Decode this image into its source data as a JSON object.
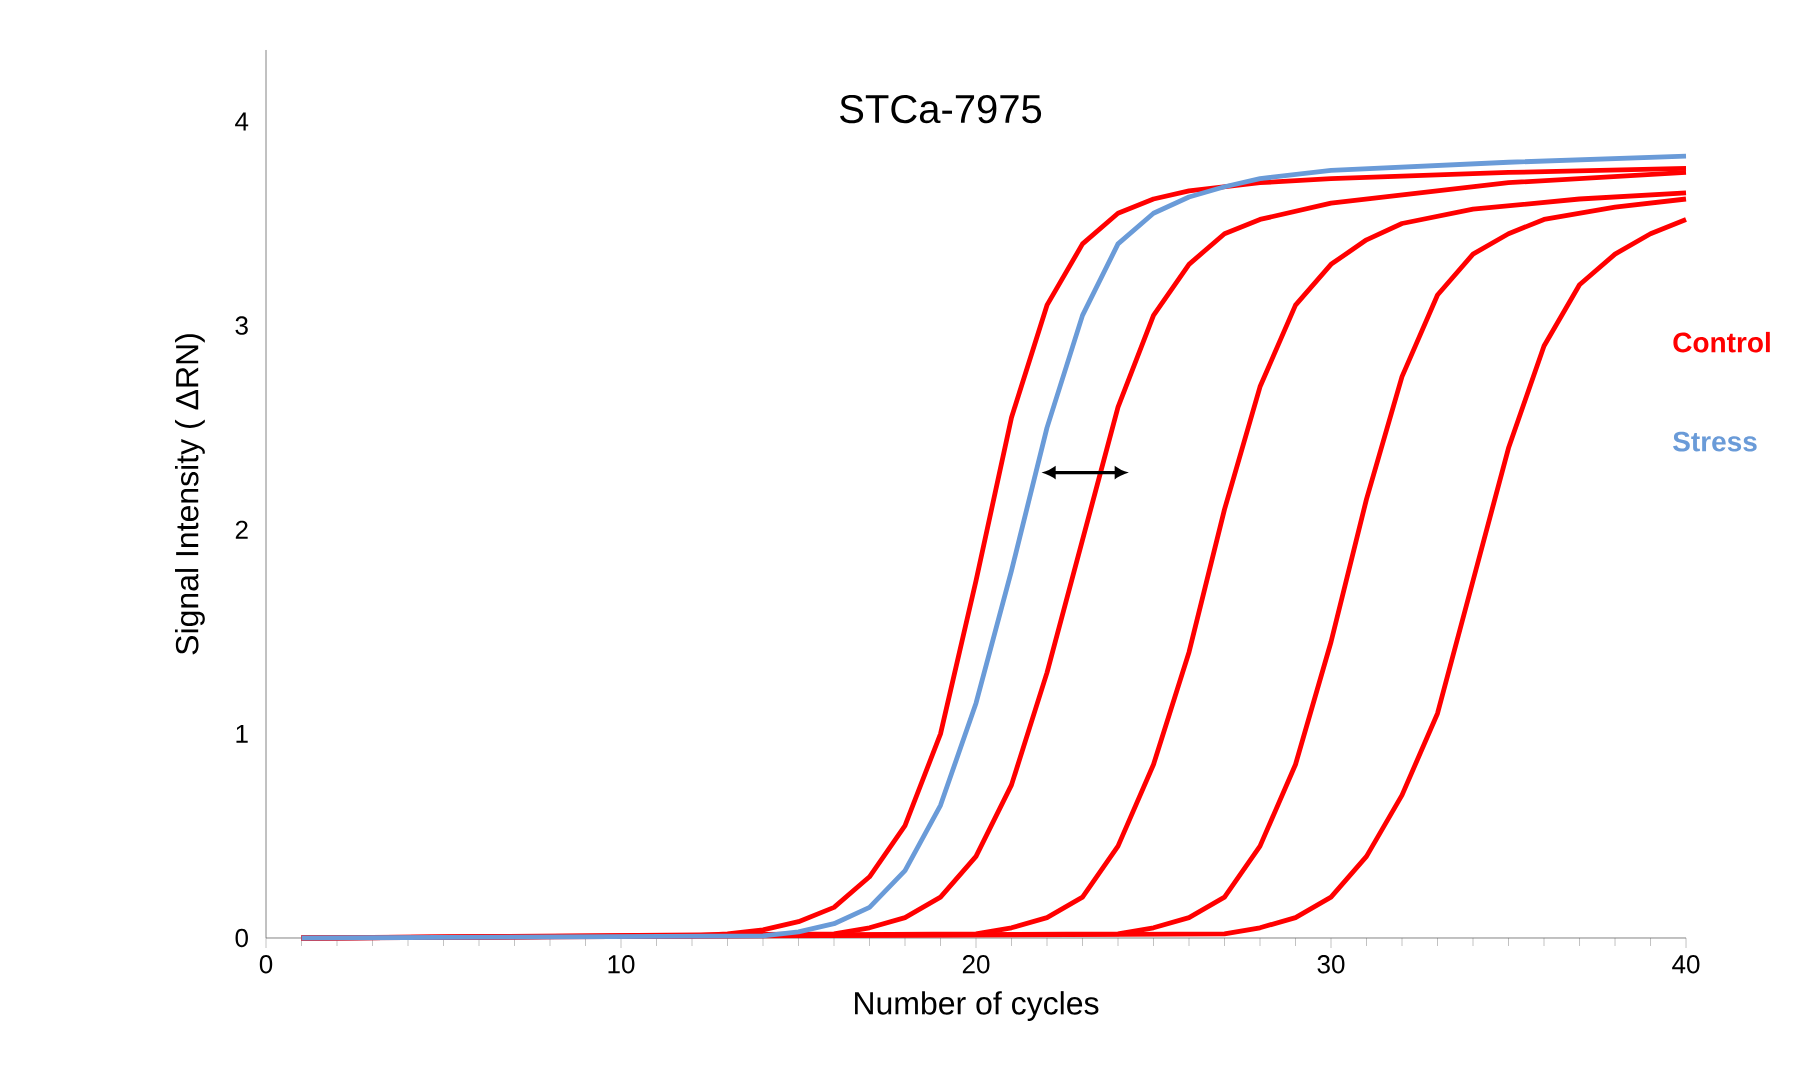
{
  "chart_data": {
    "type": "line",
    "title": "STCa-7975",
    "xlabel": "Number of cycles",
    "ylabel": "Signal Intensity ( ΔRN)",
    "xlim": [
      0,
      40
    ],
    "ylim": [
      0,
      4.35
    ],
    "xticks": [
      0,
      10,
      20,
      30,
      40
    ],
    "yticks": [
      0,
      1,
      2,
      3,
      4
    ],
    "grid": false,
    "legend": "right",
    "marker": "none",
    "line_style": "solid",
    "series": [
      {
        "name": "Control",
        "color": "#ff0000",
        "x": [
          1,
          12,
          13,
          14,
          15,
          16,
          17,
          18,
          19,
          20,
          21,
          22,
          23,
          24,
          25,
          26,
          27,
          28,
          30,
          35,
          40
        ],
        "values": [
          0,
          0.01,
          0.02,
          0.04,
          0.08,
          0.15,
          0.3,
          0.55,
          1.0,
          1.75,
          2.55,
          3.1,
          3.4,
          3.55,
          3.62,
          3.66,
          3.68,
          3.7,
          3.72,
          3.75,
          3.77
        ]
      },
      {
        "color": "#ff0000",
        "x": [
          1,
          16,
          17,
          18,
          19,
          20,
          21,
          22,
          23,
          24,
          25,
          26,
          27,
          28,
          30,
          35,
          40
        ],
        "values": [
          0,
          0.02,
          0.05,
          0.1,
          0.2,
          0.4,
          0.75,
          1.3,
          1.95,
          2.6,
          3.05,
          3.3,
          3.45,
          3.52,
          3.6,
          3.7,
          3.75
        ]
      },
      {
        "color": "#ff0000",
        "x": [
          1,
          20,
          21,
          22,
          23,
          24,
          25,
          26,
          27,
          28,
          29,
          30,
          31,
          32,
          34,
          37,
          40
        ],
        "values": [
          0,
          0.02,
          0.05,
          0.1,
          0.2,
          0.45,
          0.85,
          1.4,
          2.1,
          2.7,
          3.1,
          3.3,
          3.42,
          3.5,
          3.57,
          3.62,
          3.65
        ]
      },
      {
        "color": "#ff0000",
        "x": [
          1,
          24,
          25,
          26,
          27,
          28,
          29,
          30,
          31,
          32,
          33,
          34,
          35,
          36,
          38,
          40
        ],
        "values": [
          0,
          0.02,
          0.05,
          0.1,
          0.2,
          0.45,
          0.85,
          1.45,
          2.15,
          2.75,
          3.15,
          3.35,
          3.45,
          3.52,
          3.58,
          3.62
        ]
      },
      {
        "color": "#ff0000",
        "x": [
          1,
          27,
          28,
          29,
          30,
          31,
          32,
          33,
          34,
          35,
          36,
          37,
          38,
          39,
          40
        ],
        "values": [
          0,
          0.02,
          0.05,
          0.1,
          0.2,
          0.4,
          0.7,
          1.1,
          1.75,
          2.4,
          2.9,
          3.2,
          3.35,
          3.45,
          3.52
        ]
      },
      {
        "name": "Stress",
        "color": "#6a9bd8",
        "x": [
          1,
          14,
          15,
          16,
          17,
          18,
          19,
          20,
          21,
          22,
          23,
          24,
          25,
          26,
          27,
          28,
          30,
          35,
          40
        ],
        "values": [
          0,
          0.01,
          0.03,
          0.07,
          0.15,
          0.33,
          0.65,
          1.15,
          1.8,
          2.5,
          3.05,
          3.4,
          3.55,
          3.63,
          3.68,
          3.72,
          3.76,
          3.8,
          3.83
        ]
      }
    ]
  }
}
